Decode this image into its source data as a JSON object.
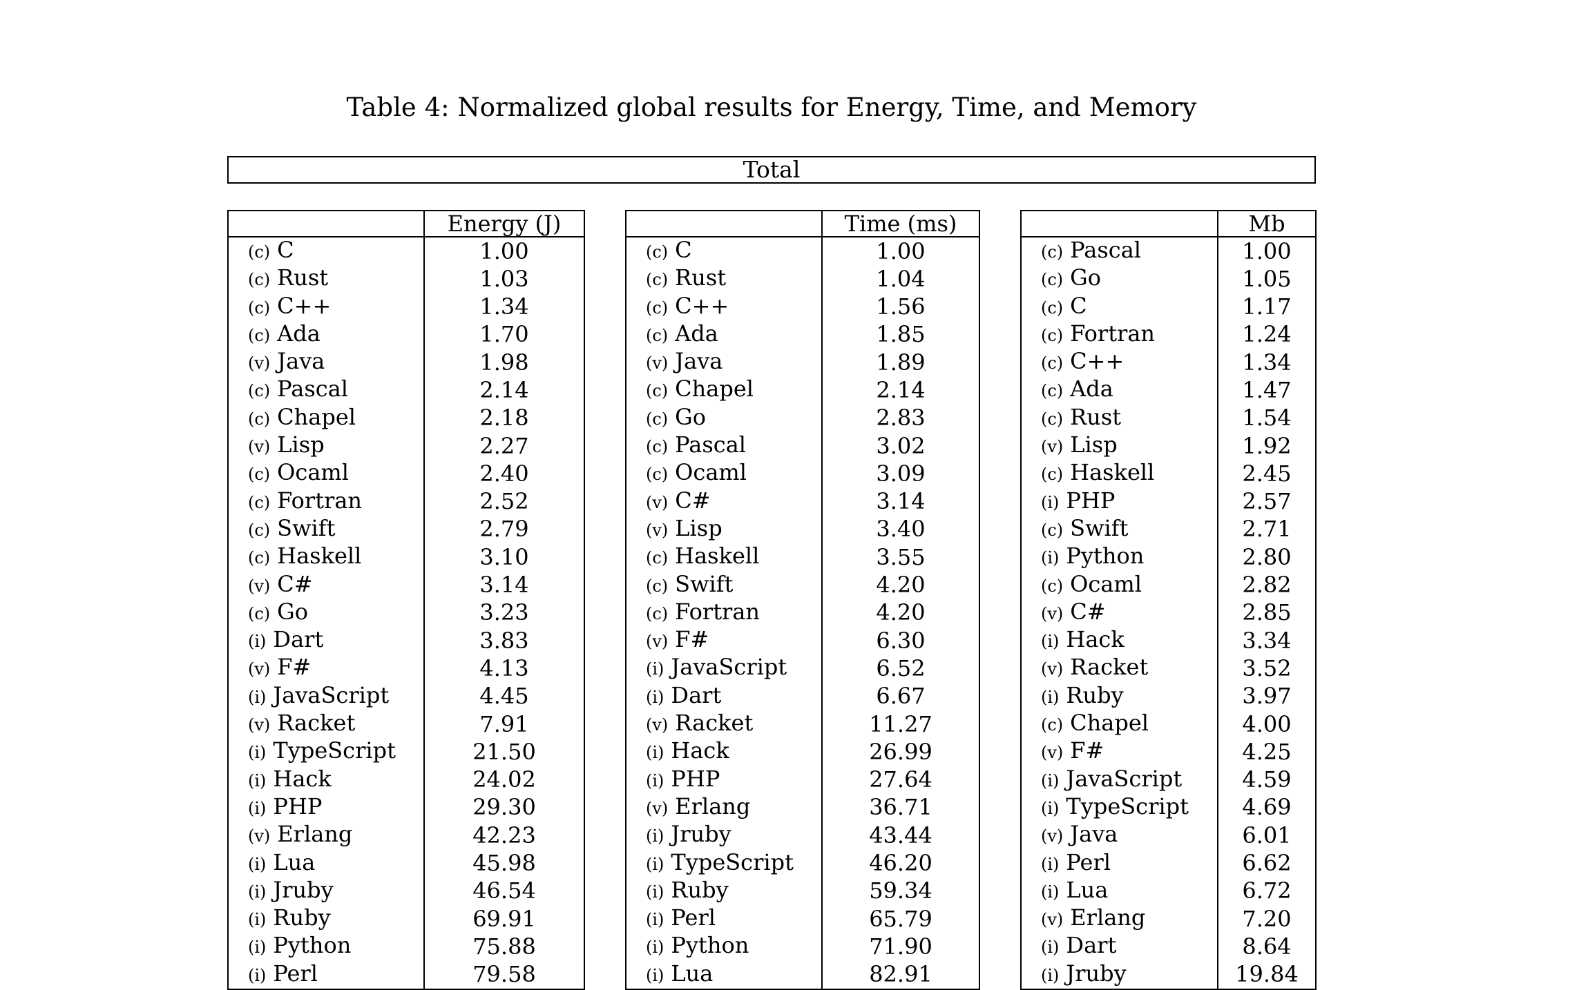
{
  "caption": "Table 4: Normalized global results for Energy, Time, and Memory",
  "total_label": "Total",
  "tables": [
    {
      "id": "energy",
      "header": "Energy (J)",
      "rows": [
        {
          "tag": "(c)",
          "name": "C",
          "value": "1.00"
        },
        {
          "tag": "(c)",
          "name": "Rust",
          "value": "1.03"
        },
        {
          "tag": "(c)",
          "name": "C++",
          "value": "1.34"
        },
        {
          "tag": "(c)",
          "name": "Ada",
          "value": "1.70"
        },
        {
          "tag": "(v)",
          "name": "Java",
          "value": "1.98"
        },
        {
          "tag": "(c)",
          "name": "Pascal",
          "value": "2.14"
        },
        {
          "tag": "(c)",
          "name": "Chapel",
          "value": "2.18"
        },
        {
          "tag": "(v)",
          "name": "Lisp",
          "value": "2.27"
        },
        {
          "tag": "(c)",
          "name": "Ocaml",
          "value": "2.40"
        },
        {
          "tag": "(c)",
          "name": "Fortran",
          "value": "2.52"
        },
        {
          "tag": "(c)",
          "name": "Swift",
          "value": "2.79"
        },
        {
          "tag": "(c)",
          "name": "Haskell",
          "value": "3.10"
        },
        {
          "tag": "(v)",
          "name": "C#",
          "value": "3.14"
        },
        {
          "tag": "(c)",
          "name": "Go",
          "value": "3.23"
        },
        {
          "tag": "(i)",
          "name": "Dart",
          "value": "3.83"
        },
        {
          "tag": "(v)",
          "name": "F#",
          "value": "4.13"
        },
        {
          "tag": "(i)",
          "name": "JavaScript",
          "value": "4.45"
        },
        {
          "tag": "(v)",
          "name": "Racket",
          "value": "7.91"
        },
        {
          "tag": "(i)",
          "name": "TypeScript",
          "value": "21.50"
        },
        {
          "tag": "(i)",
          "name": "Hack",
          "value": "24.02"
        },
        {
          "tag": "(i)",
          "name": "PHP",
          "value": "29.30"
        },
        {
          "tag": "(v)",
          "name": "Erlang",
          "value": "42.23"
        },
        {
          "tag": "(i)",
          "name": "Lua",
          "value": "45.98"
        },
        {
          "tag": "(i)",
          "name": "Jruby",
          "value": "46.54"
        },
        {
          "tag": "(i)",
          "name": "Ruby",
          "value": "69.91"
        },
        {
          "tag": "(i)",
          "name": "Python",
          "value": "75.88"
        },
        {
          "tag": "(i)",
          "name": "Perl",
          "value": "79.58"
        }
      ]
    },
    {
      "id": "time",
      "header": "Time (ms)",
      "rows": [
        {
          "tag": "(c)",
          "name": "C",
          "value": "1.00"
        },
        {
          "tag": "(c)",
          "name": "Rust",
          "value": "1.04"
        },
        {
          "tag": "(c)",
          "name": "C++",
          "value": "1.56"
        },
        {
          "tag": "(c)",
          "name": "Ada",
          "value": "1.85"
        },
        {
          "tag": "(v)",
          "name": "Java",
          "value": "1.89"
        },
        {
          "tag": "(c)",
          "name": "Chapel",
          "value": "2.14"
        },
        {
          "tag": "(c)",
          "name": "Go",
          "value": "2.83"
        },
        {
          "tag": "(c)",
          "name": "Pascal",
          "value": "3.02"
        },
        {
          "tag": "(c)",
          "name": "Ocaml",
          "value": "3.09"
        },
        {
          "tag": "(v)",
          "name": "C#",
          "value": "3.14"
        },
        {
          "tag": "(v)",
          "name": "Lisp",
          "value": "3.40"
        },
        {
          "tag": "(c)",
          "name": "Haskell",
          "value": "3.55"
        },
        {
          "tag": "(c)",
          "name": "Swift",
          "value": "4.20"
        },
        {
          "tag": "(c)",
          "name": "Fortran",
          "value": "4.20"
        },
        {
          "tag": "(v)",
          "name": "F#",
          "value": "6.30"
        },
        {
          "tag": "(i)",
          "name": "JavaScript",
          "value": "6.52"
        },
        {
          "tag": "(i)",
          "name": "Dart",
          "value": "6.67"
        },
        {
          "tag": "(v)",
          "name": "Racket",
          "value": "11.27"
        },
        {
          "tag": "(i)",
          "name": "Hack",
          "value": "26.99"
        },
        {
          "tag": "(i)",
          "name": "PHP",
          "value": "27.64"
        },
        {
          "tag": "(v)",
          "name": "Erlang",
          "value": "36.71"
        },
        {
          "tag": "(i)",
          "name": "Jruby",
          "value": "43.44"
        },
        {
          "tag": "(i)",
          "name": "TypeScript",
          "value": "46.20"
        },
        {
          "tag": "(i)",
          "name": "Ruby",
          "value": "59.34"
        },
        {
          "tag": "(i)",
          "name": "Perl",
          "value": "65.79"
        },
        {
          "tag": "(i)",
          "name": "Python",
          "value": "71.90"
        },
        {
          "tag": "(i)",
          "name": "Lua",
          "value": "82.91"
        }
      ]
    },
    {
      "id": "memory",
      "header": "Mb",
      "rows": [
        {
          "tag": "(c)",
          "name": "Pascal",
          "value": "1.00"
        },
        {
          "tag": "(c)",
          "name": "Go",
          "value": "1.05"
        },
        {
          "tag": "(c)",
          "name": "C",
          "value": "1.17"
        },
        {
          "tag": "(c)",
          "name": "Fortran",
          "value": "1.24"
        },
        {
          "tag": "(c)",
          "name": "C++",
          "value": "1.34"
        },
        {
          "tag": "(c)",
          "name": "Ada",
          "value": "1.47"
        },
        {
          "tag": "(c)",
          "name": "Rust",
          "value": "1.54"
        },
        {
          "tag": "(v)",
          "name": "Lisp",
          "value": "1.92"
        },
        {
          "tag": "(c)",
          "name": "Haskell",
          "value": "2.45"
        },
        {
          "tag": "(i)",
          "name": "PHP",
          "value": "2.57"
        },
        {
          "tag": "(c)",
          "name": "Swift",
          "value": "2.71"
        },
        {
          "tag": "(i)",
          "name": "Python",
          "value": "2.80"
        },
        {
          "tag": "(c)",
          "name": "Ocaml",
          "value": "2.82"
        },
        {
          "tag": "(v)",
          "name": "C#",
          "value": "2.85"
        },
        {
          "tag": "(i)",
          "name": "Hack",
          "value": "3.34"
        },
        {
          "tag": "(v)",
          "name": "Racket",
          "value": "3.52"
        },
        {
          "tag": "(i)",
          "name": "Ruby",
          "value": "3.97"
        },
        {
          "tag": "(c)",
          "name": "Chapel",
          "value": "4.00"
        },
        {
          "tag": "(v)",
          "name": "F#",
          "value": "4.25"
        },
        {
          "tag": "(i)",
          "name": "JavaScript",
          "value": "4.59"
        },
        {
          "tag": "(i)",
          "name": "TypeScript",
          "value": "4.69"
        },
        {
          "tag": "(v)",
          "name": "Java",
          "value": "6.01"
        },
        {
          "tag": "(i)",
          "name": "Perl",
          "value": "6.62"
        },
        {
          "tag": "(i)",
          "name": "Lua",
          "value": "6.72"
        },
        {
          "tag": "(v)",
          "name": "Erlang",
          "value": "7.20"
        },
        {
          "tag": "(i)",
          "name": "Dart",
          "value": "8.64"
        },
        {
          "tag": "(i)",
          "name": "Jruby",
          "value": "19.84"
        }
      ]
    }
  ]
}
